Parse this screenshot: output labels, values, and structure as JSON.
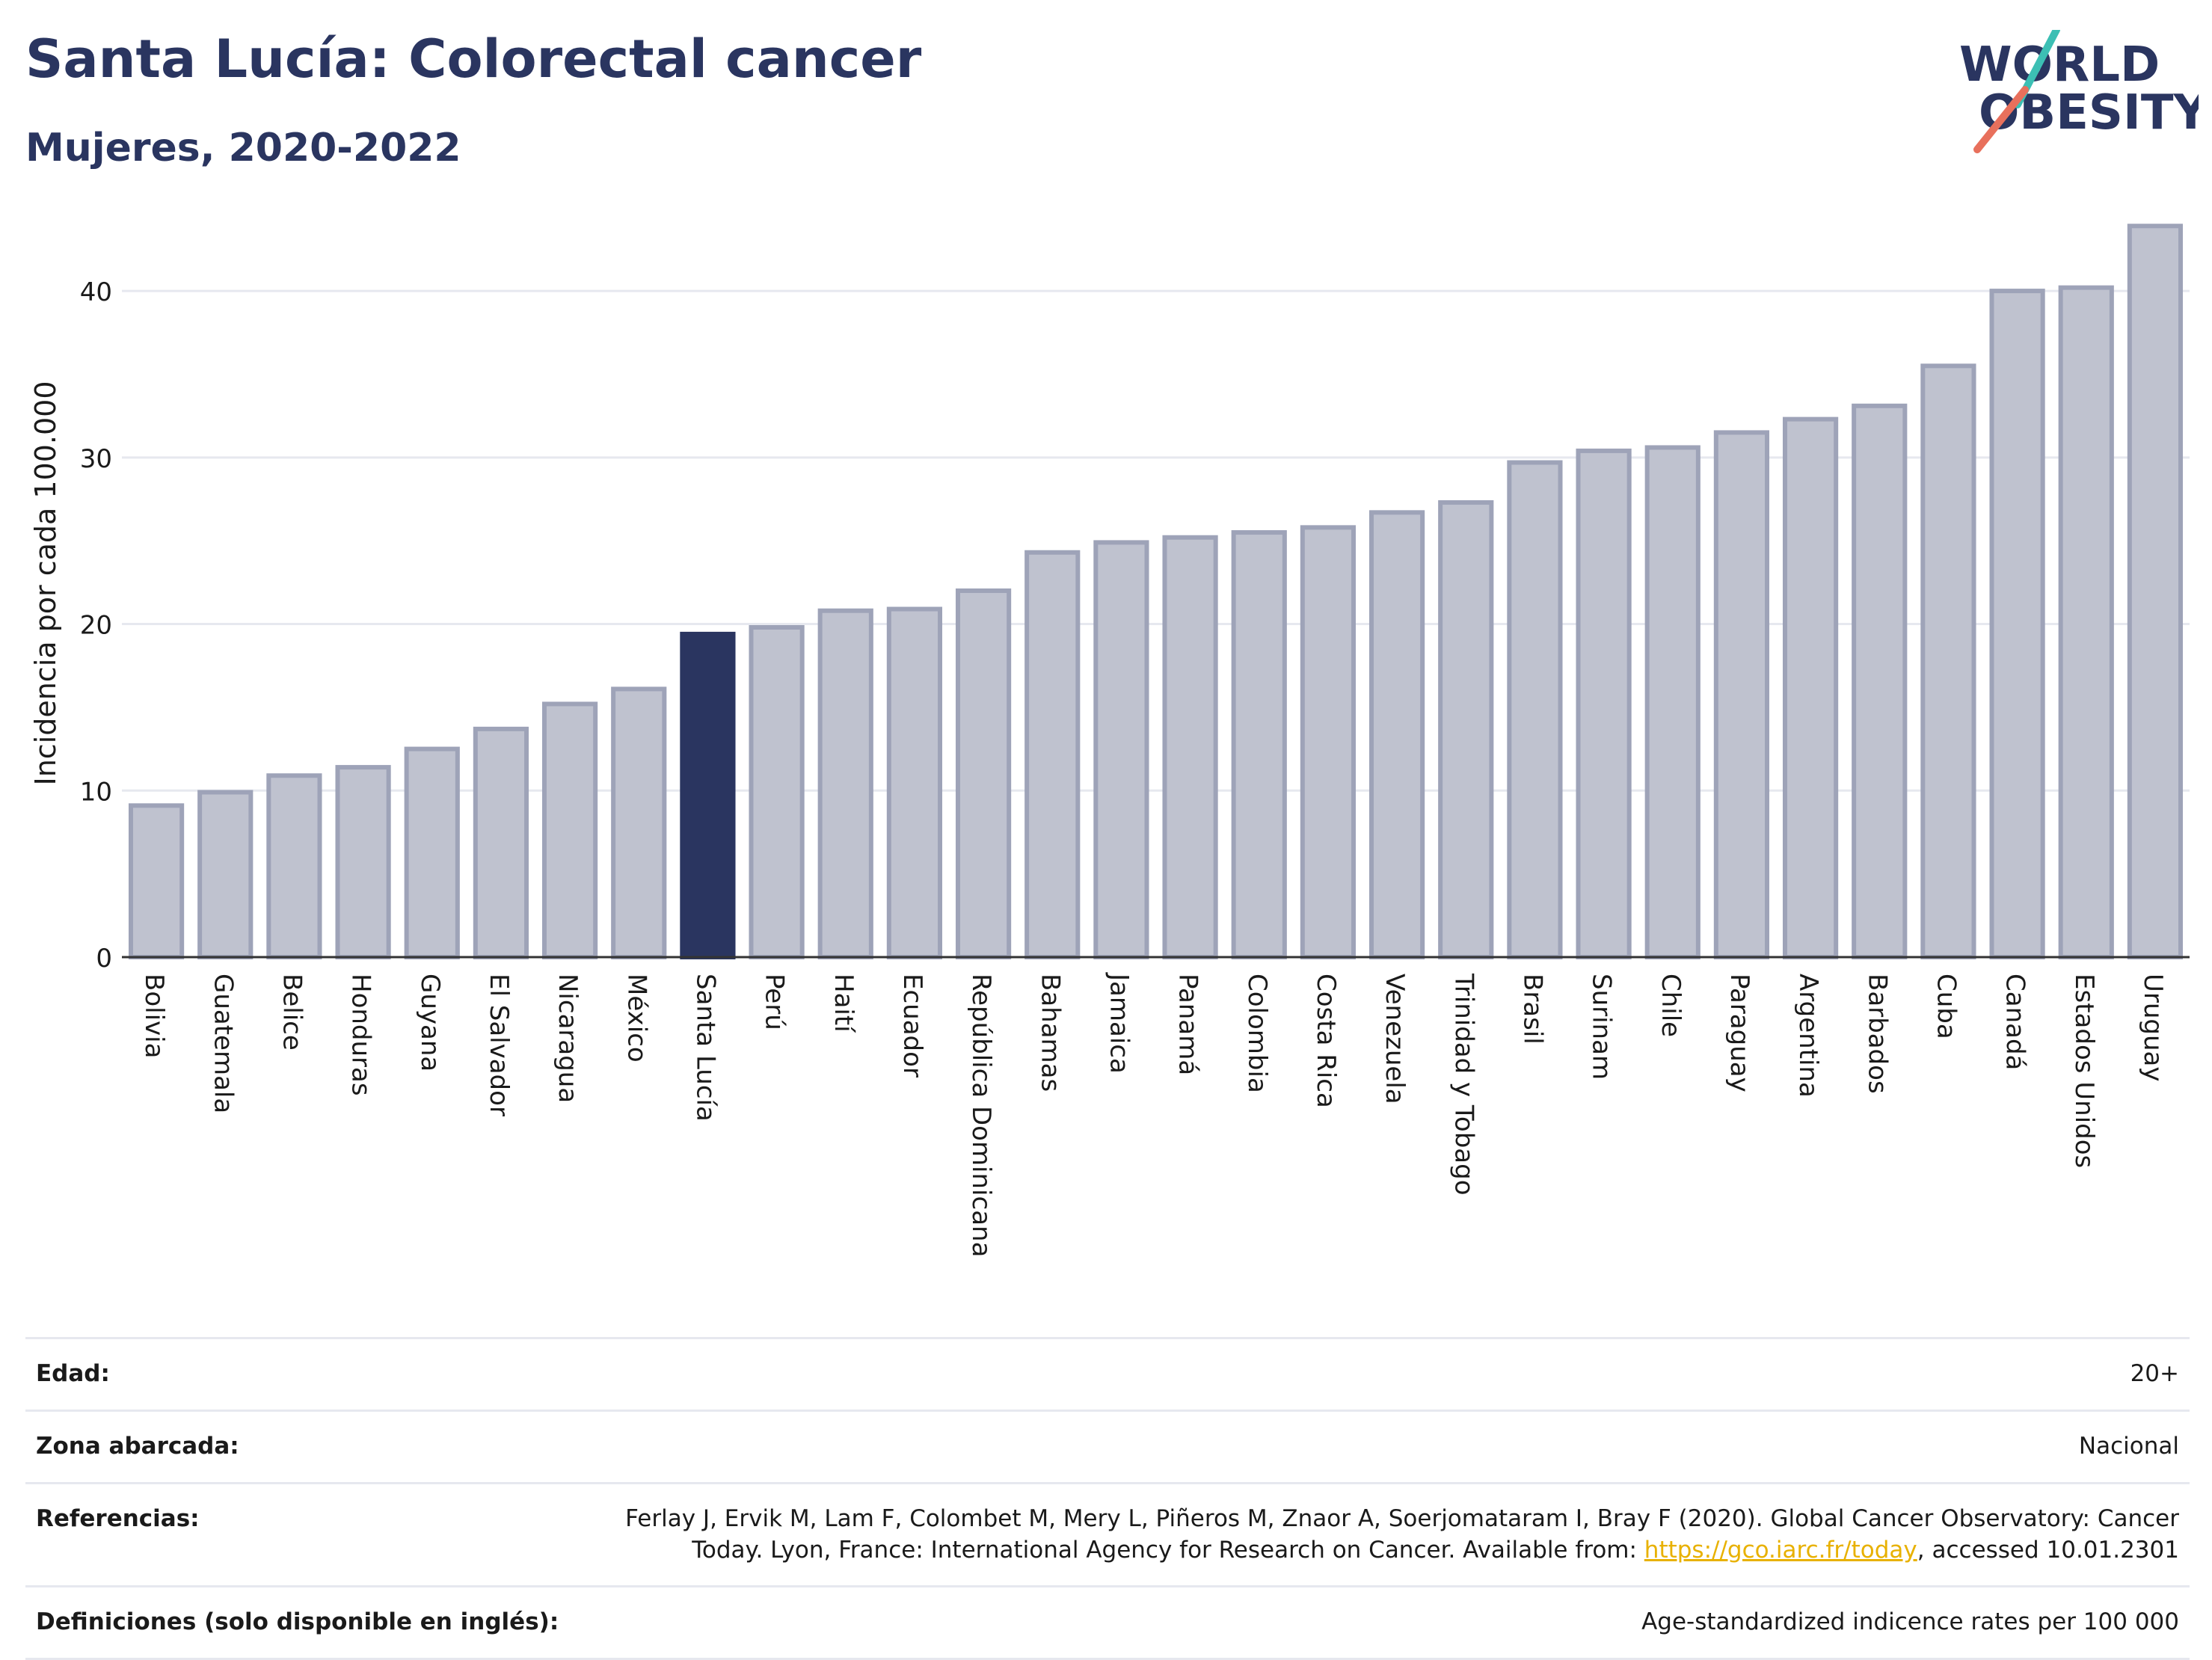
{
  "header": {
    "title": "Santa Lucía: Colorectal cancer",
    "subtitle": "Mujeres, 2020-2022"
  },
  "logo": {
    "line1": "WORLD",
    "line2": "OBESITY",
    "stroke_colors": [
      "#3cbfb4",
      "#e8705c"
    ]
  },
  "chart_data": {
    "type": "bar",
    "title": "Santa Lucía: Colorectal cancer",
    "subtitle": "Mujeres, 2020-2022",
    "xlabel": "",
    "ylabel": "Incidencia por cada 100.000",
    "ylim": [
      0,
      44
    ],
    "yticks": [
      0,
      10,
      20,
      30,
      40
    ],
    "grid": true,
    "highlight": "Santa Lucía",
    "categories": [
      "Bolivia",
      "Guatemala",
      "Belice",
      "Honduras",
      "Guyana",
      "El Salvador",
      "Nicaragua",
      "México",
      "Santa Lucía",
      "Perú",
      "Haití",
      "Ecuador",
      "República Dominicana",
      "Bahamas",
      "Jamaica",
      "Panamá",
      "Colombia",
      "Costa Rica",
      "Venezuela",
      "Trinidad y Tobago",
      "Brasil",
      "Surinam",
      "Chile",
      "Paraguay",
      "Argentina",
      "Barbados",
      "Cuba",
      "Canadá",
      "Estados Unidos",
      "Uruguay"
    ],
    "values": [
      9.1,
      9.9,
      10.9,
      11.4,
      12.5,
      13.7,
      15.2,
      16.1,
      19.4,
      19.8,
      20.8,
      20.9,
      22.0,
      24.3,
      24.9,
      25.2,
      25.5,
      25.8,
      26.7,
      27.3,
      29.7,
      30.4,
      30.6,
      31.5,
      32.3,
      33.1,
      35.5,
      40.0,
      40.2,
      43.9
    ],
    "colors": {
      "bar": "#bfc2cf",
      "bar_border": "#9ea3b8",
      "highlight": "#2a3560",
      "grid": "#e6e8ef",
      "axis": "#333333"
    }
  },
  "info": {
    "rows": [
      {
        "key": "Edad:",
        "value": "20+"
      },
      {
        "key": "Zona abarcada:",
        "value": "Nacional"
      },
      {
        "key": "Referencias:",
        "value": "Ferlay J, Ervik M, Lam F, Colombet M, Mery L, Piñeros M, Znaor A, Soerjomataram I, Bray F (2020). Global Cancer Observatory: Cancer Today. Lyon, France: International Agency for Research on Cancer. Available from: ",
        "link": "https://gco.iarc.fr/today",
        "suffix": ", accessed 10.01.2301"
      },
      {
        "key": "Definiciones (solo disponible en inglés):",
        "value": "Age-standardized indicence rates per 100 000"
      }
    ]
  }
}
